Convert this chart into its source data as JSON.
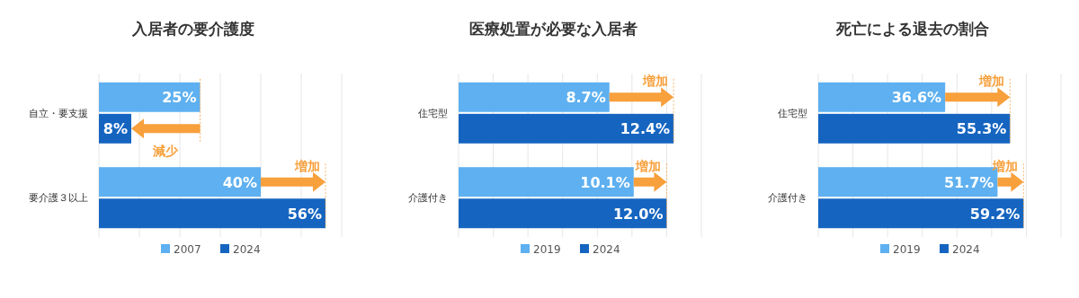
{
  "chart_data": [
    {
      "type": "bar",
      "orientation": "horizontal",
      "title": "入居者の要介護度",
      "categories": [
        "自立・要支援",
        "要介護３以上"
      ],
      "series": [
        {
          "name": "2007",
          "color": "#5eb0f0",
          "values": [
            25,
            40
          ],
          "value_labels": [
            "25%",
            "40%"
          ]
        },
        {
          "name": "2024",
          "color": "#1565c0",
          "values": [
            8,
            56
          ],
          "value_labels": [
            "8%",
            "56%"
          ]
        }
      ],
      "xlim": [
        0,
        60
      ],
      "xticks": [
        {
          "value": 0,
          "label": null
        },
        {
          "value": 10,
          "label": null
        },
        {
          "value": 20,
          "label": null
        },
        {
          "value": 30,
          "label": null
        },
        {
          "value": 40,
          "label": null
        },
        {
          "value": 50,
          "label": null
        },
        {
          "value": 60,
          "label": null
        }
      ],
      "grid": "x",
      "legend": "bottom",
      "tick_labels": "y",
      "annotations": [
        {
          "text": "減少",
          "x": 8,
          "y": "自立・要支援"
        },
        {
          "text": "増加",
          "x": 56,
          "y": "要介護３以上"
        }
      ]
    },
    {
      "type": "bar",
      "orientation": "horizontal",
      "title": "医療処置が必要な入居者",
      "categories": [
        "住宅型",
        "介護付き"
      ],
      "series": [
        {
          "name": "2019",
          "color": "#5eb0f0",
          "values": [
            8.7,
            10.1
          ],
          "value_labels": [
            "8.7%",
            "10.1%"
          ]
        },
        {
          "name": "2024",
          "color": "#1565c0",
          "values": [
            12.4,
            12.0
          ],
          "value_labels": [
            "12.4%",
            "12.0%"
          ]
        }
      ],
      "xlim": [
        0,
        14
      ],
      "xticks": [
        {
          "value": 0,
          "label": null
        },
        {
          "value": 2,
          "label": null
        },
        {
          "value": 4,
          "label": null
        },
        {
          "value": 6,
          "label": null
        },
        {
          "value": 8,
          "label": null
        },
        {
          "value": 10,
          "label": null
        },
        {
          "value": 12,
          "label": null
        },
        {
          "value": 14,
          "label": null
        }
      ],
      "grid": "x",
      "legend": "bottom",
      "tick_labels": "y",
      "annotations": [
        {
          "text": "増加",
          "x": 12.4,
          "y": "住宅型"
        },
        {
          "text": "増加",
          "x": 12.0,
          "y": "介護付き"
        }
      ]
    },
    {
      "type": "bar",
      "orientation": "horizontal",
      "title": "死亡による退去の割合",
      "categories": [
        "住宅型",
        "介護付き"
      ],
      "series": [
        {
          "name": "2019",
          "color": "#5eb0f0",
          "values": [
            36.6,
            51.7
          ],
          "value_labels": [
            "36.6%",
            "51.7%"
          ]
        },
        {
          "name": "2024",
          "color": "#1565c0",
          "values": [
            55.3,
            59.2
          ],
          "value_labels": [
            "55.3%",
            "59.2%"
          ]
        }
      ],
      "xlim": [
        0,
        70
      ],
      "xticks": [
        {
          "value": 0,
          "label": null
        },
        {
          "value": 10,
          "label": null
        },
        {
          "value": 20,
          "label": null
        },
        {
          "value": 30,
          "label": null
        },
        {
          "value": 40,
          "label": null
        },
        {
          "value": 50,
          "label": null
        },
        {
          "value": 60,
          "label": null
        },
        {
          "value": 70,
          "label": null
        }
      ],
      "grid": "x",
      "legend": "bottom",
      "tick_labels": "y",
      "annotations": [
        {
          "text": "増加",
          "x": 55.3,
          "y": "住宅型"
        },
        {
          "text": "増加",
          "x": 59.2,
          "y": "介護付き"
        }
      ]
    }
  ]
}
